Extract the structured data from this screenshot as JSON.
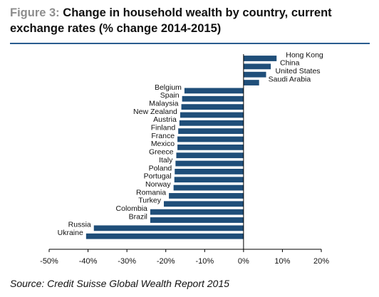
{
  "header": {
    "figure_label": "Figure 3:",
    "title": "Change in household wealth by country, current exchange rates (% change 2014-2015)"
  },
  "footer": {
    "source": "Source: Credit Suisse Global Wealth Report 2015"
  },
  "chart_data": {
    "type": "bar",
    "orientation": "horizontal",
    "title": "Change in household wealth by country, current exchange rates (% change 2014-2015)",
    "categories": [
      "Hong Kong",
      "China",
      "United States",
      "Saudi Arabia",
      "Belgium",
      "Spain",
      "Malaysia",
      "New Zealand",
      "Austria",
      "Finland",
      "France",
      "Mexico",
      "Greece",
      "Italy",
      "Poland",
      "Portugal",
      "Norway",
      "Romania",
      "Turkey",
      "Colombia",
      "Brazil",
      "Russia",
      "Ukraine"
    ],
    "values": [
      8.5,
      7.0,
      5.8,
      4.0,
      -15.2,
      -15.8,
      -16.0,
      -16.3,
      -16.5,
      -16.8,
      -17.0,
      -17.0,
      -17.3,
      -17.5,
      -17.7,
      -17.8,
      -18.0,
      -19.2,
      -20.5,
      -24.0,
      -24.0,
      -38.5,
      -40.5
    ],
    "xlim": [
      -50,
      20
    ],
    "xticks": [
      -50,
      -40,
      -30,
      -20,
      -10,
      0,
      10,
      20
    ],
    "xtick_labels": [
      "-50%",
      "-40%",
      "-30%",
      "-20%",
      "-10%",
      "0%",
      "10%",
      "20%"
    ],
    "bar_color": "#1f4e79",
    "grid": false,
    "legend": "none"
  }
}
